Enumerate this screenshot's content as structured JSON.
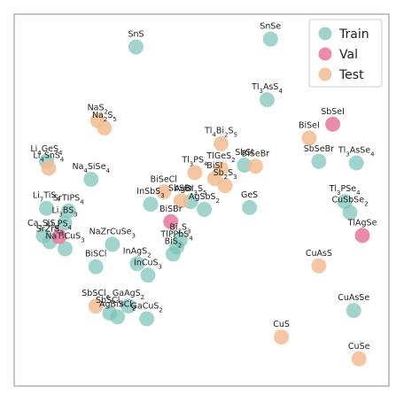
{
  "chart_data": {
    "type": "scatter",
    "title": "",
    "xlabel": "",
    "ylabel": "",
    "xlim": [
      0,
      100
    ],
    "ylim": [
      0,
      100
    ],
    "grid": false,
    "axis_ticks": false,
    "legend_position": "top-right",
    "series": [
      {
        "name": "Train",
        "color": "#7cc4b8",
        "points": [
          {
            "label": "SnS",
            "x": 32.5,
            "y": 91.2
          },
          {
            "label": "SnSe",
            "x": 68.4,
            "y": 93.3
          },
          {
            "label": "Tl$_3$AsS$_4$",
            "x": 67.5,
            "y": 77.0
          },
          {
            "label": "SbSeBr",
            "x": 81.3,
            "y": 60.4
          },
          {
            "label": "Tl$_3$AsSe$_4$",
            "x": 91.3,
            "y": 60.0
          },
          {
            "label": "Li$_4$GeS$_4$",
            "x": 8.6,
            "y": 60.4
          },
          {
            "label": "Na$_4$SiSe$_4$",
            "x": 20.5,
            "y": 55.6
          },
          {
            "label": "InSbS$_3$",
            "x": 36.4,
            "y": 48.9
          },
          {
            "label": "AgBi$_3$S$_5$",
            "x": 47.1,
            "y": 49.6
          },
          {
            "label": "AgSbS$_2$",
            "x": 50.7,
            "y": 47.5
          },
          {
            "label": "GeS",
            "x": 62.8,
            "y": 48.0
          },
          {
            "label": "SbSI",
            "x": 61.4,
            "y": 59.4
          },
          {
            "label": "Tl$_3$PSe$_4$",
            "x": 88.2,
            "y": 49.6
          },
          {
            "label": "CuSbSe$_2$",
            "x": 89.6,
            "y": 46.7
          },
          {
            "label": "Li$_7$TiS$_4$",
            "x": 8.6,
            "y": 47.8
          },
          {
            "label": "SrTIPS$_4$",
            "x": 14.5,
            "y": 47.1
          },
          {
            "label": "Li$_3$BS$_3$",
            "x": 13.5,
            "y": 43.8
          },
          {
            "label": "Ca$_2$SiS$_4$",
            "x": 7.8,
            "y": 40.4
          },
          {
            "label": "SrZrS$_3$",
            "x": 9.5,
            "y": 38.8
          },
          {
            "label": "NaTiCuS$_3$",
            "x": 13.6,
            "y": 36.9
          },
          {
            "label": "NaZrCuSe$_3$",
            "x": 26.2,
            "y": 38.1
          },
          {
            "label": "Bi$_2$S$_3$",
            "x": 44.3,
            "y": 39.3
          },
          {
            "label": "TlPPbS$_4$",
            "x": 43.4,
            "y": 37.4
          },
          {
            "label": "BiS$_2$",
            "x": 42.4,
            "y": 35.5
          },
          {
            "label": "BiSCl",
            "x": 21.8,
            "y": 32.1
          },
          {
            "label": "InAgS$_2$",
            "x": 32.8,
            "y": 32.9
          },
          {
            "label": "InCuS$_3$",
            "x": 35.7,
            "y": 29.8
          },
          {
            "label": "SbSCl$_6$",
            "x": 25.5,
            "y": 19.6
          },
          {
            "label": "GaAgS$_2$",
            "x": 30.5,
            "y": 21.5
          },
          {
            "label": "AgBiSCl$_2$",
            "x": 27.6,
            "y": 18.6
          },
          {
            "label": "GaCuS$_2$",
            "x": 35.4,
            "y": 18.1
          },
          {
            "label": "CuAsSe",
            "x": 90.6,
            "y": 20.3
          }
        ]
      },
      {
        "name": "Val",
        "color": "#e6779c",
        "points": [
          {
            "label": "SbSeI",
            "x": 85.0,
            "y": 70.4
          },
          {
            "label": "BiSBr",
            "x": 41.8,
            "y": 44.2
          },
          {
            "label": "Li$_3$PS$_4$",
            "x": 12.0,
            "y": 40.2
          },
          {
            "label": "TlAgSe",
            "x": 92.9,
            "y": 40.5
          }
        ]
      },
      {
        "name": "Test",
        "color": "#f2bc90",
        "points": [
          {
            "label": "NaS$_2$",
            "x": 22.3,
            "y": 71.4
          },
          {
            "label": "Na$_2$S$_5$",
            "x": 24.1,
            "y": 69.4
          },
          {
            "label": "BiSeI",
            "x": 78.7,
            "y": 66.7
          },
          {
            "label": "Tl$_4$Bi$_2$S$_5$",
            "x": 55.2,
            "y": 65.2
          },
          {
            "label": "Li$_4$SnS$_4$",
            "x": 9.2,
            "y": 58.6
          },
          {
            "label": "Tl$_3$PS$_4$",
            "x": 48.2,
            "y": 57.4
          },
          {
            "label": "TlGeS$_2$",
            "x": 55.2,
            "y": 58.4
          },
          {
            "label": "BiSeBr",
            "x": 64.4,
            "y": 59.1
          },
          {
            "label": "BiSI",
            "x": 53.5,
            "y": 55.8
          },
          {
            "label": "Sb$_2$S$_3$",
            "x": 56.3,
            "y": 53.9
          },
          {
            "label": "BiSeCl",
            "x": 39.9,
            "y": 52.2
          },
          {
            "label": "SbSBr",
            "x": 44.5,
            "y": 49.8
          },
          {
            "label": "CuAsS",
            "x": 81.3,
            "y": 32.3
          },
          {
            "label": "SbSCl$_6$",
            "x": 21.8,
            "y": 21.5
          },
          {
            "label": "CuS",
            "x": 71.3,
            "y": 13.2
          },
          {
            "label": "CuSe",
            "x": 92.0,
            "y": 7.3
          }
        ]
      }
    ]
  }
}
